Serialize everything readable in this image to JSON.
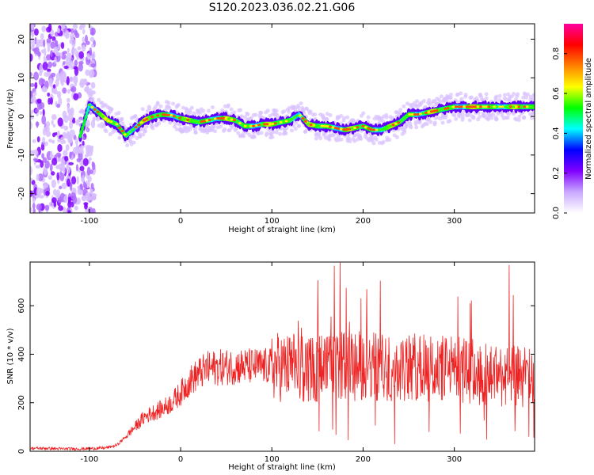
{
  "title": "S120.2023.036.02.21.G06",
  "chart_data": [
    {
      "type": "heatmap",
      "xlabel": "Height of straight line (km)",
      "ylabel": "Frequency (Hz)",
      "xlim": [
        -165,
        388
      ],
      "ylim": [
        -25,
        24
      ],
      "xticks": [
        -100,
        0,
        100,
        200,
        300
      ],
      "yticks": [
        -20,
        -10,
        0,
        10,
        20
      ],
      "colorbar": {
        "label": "Normalized spectral amplitude",
        "range": [
          0,
          0.95
        ],
        "ticks": [
          0.0,
          0.2,
          0.4,
          0.6,
          0.8
        ],
        "colormap": [
          "#ffffff",
          "#c9a8ff",
          "#8000ff",
          "#0000ff",
          "#00ffff",
          "#00ff00",
          "#ffff00",
          "#ff8000",
          "#ff0000",
          "#ff00a0"
        ]
      },
      "ridge": {
        "x": [
          -110,
          -100,
          -90,
          -80,
          -70,
          -60,
          -50,
          -40,
          -30,
          -20,
          -10,
          0,
          10,
          20,
          30,
          40,
          50,
          60,
          70,
          80,
          90,
          100,
          110,
          120,
          130,
          140,
          150,
          160,
          170,
          180,
          190,
          200,
          210,
          220,
          230,
          240,
          250,
          260,
          270,
          280,
          290,
          300,
          310,
          320,
          330,
          340,
          350,
          360,
          370,
          380
        ],
        "y": [
          -5,
          3,
          1,
          -1,
          -2,
          -5,
          -3,
          -1,
          0,
          0.5,
          0.3,
          -0.5,
          -1,
          -1.5,
          -1,
          -0.5,
          -0.5,
          -1,
          -2.5,
          -2.5,
          -2,
          -2,
          -1.5,
          -1,
          0.5,
          -2,
          -2.5,
          -2.5,
          -3,
          -3.5,
          -3,
          -2.5,
          -3.5,
          -3.5,
          -2.5,
          -1.5,
          0.5,
          0.5,
          1,
          1.5,
          2,
          2.5,
          2.5,
          2.5,
          2.5,
          2.5,
          2.5,
          2.5,
          2.5,
          2.5
        ]
      }
    },
    {
      "type": "line",
      "xlabel": "Height of straight line (km)",
      "ylabel": "SNR (10 * v/v)",
      "xlim": [
        -165,
        388
      ],
      "ylim": [
        0,
        780
      ],
      "xticks": [
        -100,
        0,
        100,
        200,
        300
      ],
      "yticks": [
        0,
        200,
        400,
        600
      ],
      "series": [
        {
          "color": "#ee2222",
          "x": [
            -165,
            -150,
            -130,
            -110,
            -90,
            -80,
            -70,
            -60,
            -50,
            -40,
            -30,
            -20,
            -10,
            0,
            10,
            20,
            30,
            40,
            60,
            80,
            100,
            120,
            140,
            160,
            180,
            200,
            220,
            240,
            260,
            280,
            300,
            320,
            340,
            360,
            388
          ],
          "y": [
            12,
            12,
            10,
            10,
            12,
            15,
            25,
            60,
            100,
            140,
            160,
            175,
            200,
            240,
            290,
            320,
            340,
            345,
            350,
            350,
            350,
            345,
            340,
            345,
            350,
            350,
            345,
            340,
            345,
            340,
            335,
            330,
            320,
            310,
            300
          ]
        }
      ]
    }
  ]
}
